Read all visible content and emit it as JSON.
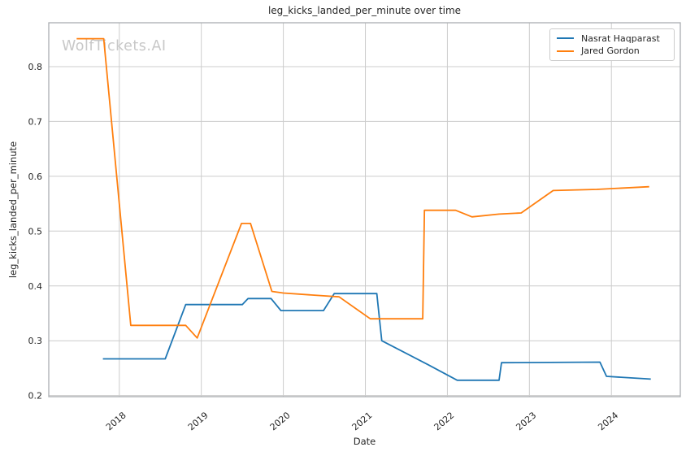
{
  "figure": {
    "watermark": "WolfTickets.AI"
  },
  "chart_data": {
    "type": "line",
    "title": "leg_kicks_landed_per_minute over time",
    "xlabel": "Date",
    "ylabel": "leg_kicks_landed_per_minute",
    "xlim": [
      2017.14,
      2024.84
    ],
    "ylim": [
      0.198,
      0.88
    ],
    "x_ticks": [
      2018,
      2019,
      2020,
      2021,
      2022,
      2023,
      2024
    ],
    "x_tick_labels": [
      "2018",
      "2019",
      "2020",
      "2021",
      "2022",
      "2023",
      "2024"
    ],
    "y_ticks": [
      0.2,
      0.3,
      0.4,
      0.5,
      0.6,
      0.7,
      0.8
    ],
    "y_tick_labels": [
      "0.2",
      "0.3",
      "0.4",
      "0.5",
      "0.6",
      "0.7",
      "0.8"
    ],
    "grid": true,
    "legend_position": "upper right",
    "series": [
      {
        "name": "Nasrat Haqparast",
        "color": "#1f77b4",
        "points": [
          [
            2017.8,
            0.267
          ],
          [
            2018.56,
            0.267
          ],
          [
            2018.81,
            0.366
          ],
          [
            2019.5,
            0.366
          ],
          [
            2019.57,
            0.377
          ],
          [
            2019.85,
            0.377
          ],
          [
            2019.97,
            0.355
          ],
          [
            2020.49,
            0.355
          ],
          [
            2020.62,
            0.386
          ],
          [
            2021.14,
            0.386
          ],
          [
            2021.2,
            0.3
          ],
          [
            2021.77,
            0.256
          ],
          [
            2022.12,
            0.228
          ],
          [
            2022.63,
            0.228
          ],
          [
            2022.66,
            0.26
          ],
          [
            2023.86,
            0.261
          ],
          [
            2023.94,
            0.235
          ],
          [
            2024.48,
            0.23
          ]
        ]
      },
      {
        "name": "Jared Gordon",
        "color": "#ff7f0e",
        "points": [
          [
            2017.48,
            0.851
          ],
          [
            2017.81,
            0.851
          ],
          [
            2018.14,
            0.328
          ],
          [
            2018.81,
            0.328
          ],
          [
            2018.95,
            0.305
          ],
          [
            2019.49,
            0.514
          ],
          [
            2019.6,
            0.514
          ],
          [
            2019.86,
            0.39
          ],
          [
            2020.0,
            0.387
          ],
          [
            2020.68,
            0.38
          ],
          [
            2021.06,
            0.34
          ],
          [
            2021.7,
            0.34
          ],
          [
            2021.72,
            0.538
          ],
          [
            2022.1,
            0.538
          ],
          [
            2022.3,
            0.526
          ],
          [
            2022.63,
            0.531
          ],
          [
            2022.9,
            0.533
          ],
          [
            2023.29,
            0.574
          ],
          [
            2023.82,
            0.576
          ],
          [
            2024.46,
            0.581
          ]
        ]
      }
    ]
  },
  "style": {
    "background": "#ffffff",
    "grid_color": "#cccccc",
    "spine_color": "#aaaeb2",
    "text_color": "#262626",
    "watermark_color": "#c8c8c8",
    "line_width": 1.8
  }
}
